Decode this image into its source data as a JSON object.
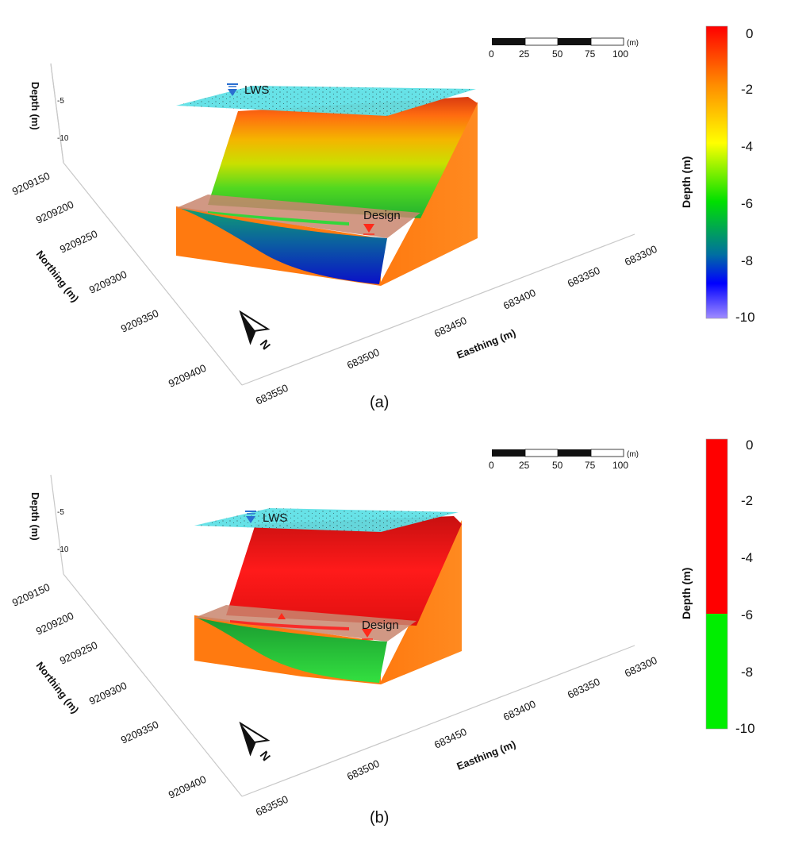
{
  "panels": [
    {
      "id": "a",
      "caption": "(a)",
      "depth_axis": {
        "label": "Depth (m)",
        "ticks": [
          "-5",
          "-10"
        ]
      },
      "northing_axis": {
        "label": "Northing (m)",
        "ticks": [
          "9209150",
          "9209200",
          "9209250",
          "9209300",
          "9209350",
          "9209400"
        ]
      },
      "easting_axis": {
        "label": "Easthing (m)",
        "ticks": [
          "683550",
          "683500",
          "683450",
          "683400",
          "683350",
          "683300"
        ]
      },
      "scale_bar": {
        "ticks": [
          "0",
          "25",
          "50",
          "75",
          "100"
        ],
        "unit": "(m)"
      },
      "water_label": "LWS",
      "design_label": "Design",
      "north_label": "N",
      "colorbar": {
        "title": "Depth (m)",
        "type": "continuous",
        "ticks": [
          "0",
          "-2",
          "-4",
          "-6",
          "-8",
          "-10"
        ]
      }
    },
    {
      "id": "b",
      "caption": "(b)",
      "depth_axis": {
        "label": "Depth (m)",
        "ticks": [
          "-5",
          "-10"
        ]
      },
      "northing_axis": {
        "label": "Northing (m)",
        "ticks": [
          "9209150",
          "9209200",
          "9209250",
          "9209300",
          "9209350",
          "9209400"
        ]
      },
      "easting_axis": {
        "label": "Easthing (m)",
        "ticks": [
          "683550",
          "683500",
          "683450",
          "683400",
          "683350",
          "683300"
        ]
      },
      "scale_bar": {
        "ticks": [
          "0",
          "25",
          "50",
          "75",
          "100"
        ],
        "unit": "(m)"
      },
      "water_label": "LWS",
      "design_label": "Design",
      "north_label": "N",
      "colorbar": {
        "title": "Depth (m)",
        "type": "binary",
        "ticks": [
          "0",
          "-2",
          "-4",
          "-6",
          "-8",
          "-10"
        ]
      }
    }
  ],
  "colors": {
    "water": "#5fe0e6",
    "box_side": "#ff7a10",
    "design_plane": "#c9866f",
    "above_design": "#ff1a1a",
    "below_design": "#22dd33",
    "marker_blue": "#2a6fd1",
    "marker_red": "#ff2a1a"
  }
}
